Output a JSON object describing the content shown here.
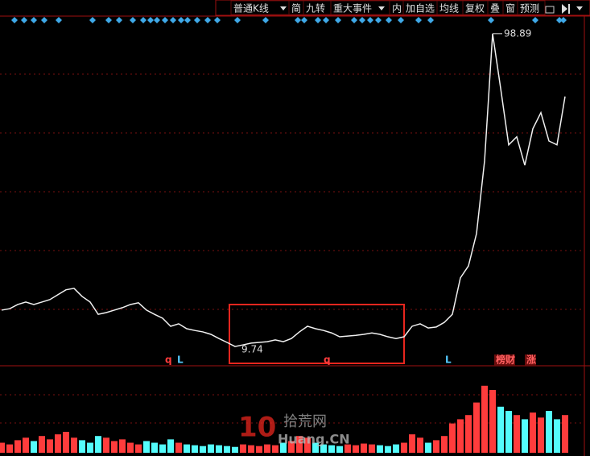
{
  "toolbar": [
    "普通K线",
    "简",
    "九转",
    "重大事件",
    "内",
    "加自选",
    "均线",
    "复权",
    "叠",
    "窗",
    "预测"
  ],
  "signals": [
    "q",
    "L",
    "q",
    "L",
    "榜财",
    "涨"
  ],
  "watermark": {
    "number": "10",
    "name": "拾荒网",
    "site": "Huang.CN"
  },
  "chart_data": [
    {
      "type": "line",
      "color": "#f0f0f0",
      "ylim": [
        4.7,
        103.9
      ],
      "values": [
        20.1,
        20.5,
        21.7,
        22.4,
        21.7,
        22.4,
        23.1,
        24.5,
        25.9,
        26.3,
        24.0,
        22.4,
        18.9,
        19.4,
        20.1,
        20.8,
        21.7,
        22.2,
        20.1,
        18.9,
        17.8,
        15.5,
        16.2,
        14.8,
        14.3,
        13.9,
        13.2,
        12.0,
        10.9,
        9.74,
        10.2,
        10.7,
        10.9,
        11.1,
        11.6,
        11.1,
        12.0,
        13.9,
        15.5,
        14.8,
        14.3,
        13.6,
        12.5,
        12.7,
        12.9,
        13.2,
        13.6,
        13.2,
        12.5,
        12.0,
        12.5,
        15.5,
        16.2,
        15.0,
        15.3,
        16.6,
        18.9,
        29.3,
        32.7,
        41.9,
        62.6,
        98.89,
        83.3,
        67.2,
        69.5,
        61.4,
        71.8,
        76.4,
        68.3,
        67.2,
        81.0
      ]
    },
    {
      "type": "bar",
      "up_color": "#ff3c3c",
      "down_color": "#54fcfc",
      "ylim": [
        0,
        100
      ],
      "values": [
        12,
        10,
        15,
        18,
        14,
        20,
        16,
        22,
        25,
        18,
        15,
        12,
        20,
        18,
        14,
        16,
        12,
        10,
        14,
        12,
        10,
        16,
        12,
        10,
        9,
        8,
        10,
        9,
        8,
        7,
        10,
        9,
        8,
        10,
        9,
        12,
        14,
        20,
        18,
        12,
        10,
        9,
        8,
        10,
        9,
        11,
        10,
        9,
        8,
        10,
        12,
        22,
        18,
        12,
        15,
        20,
        35,
        40,
        45,
        60,
        80,
        75,
        55,
        50,
        45,
        40,
        48,
        42,
        50,
        40,
        45
      ]
    }
  ]
}
